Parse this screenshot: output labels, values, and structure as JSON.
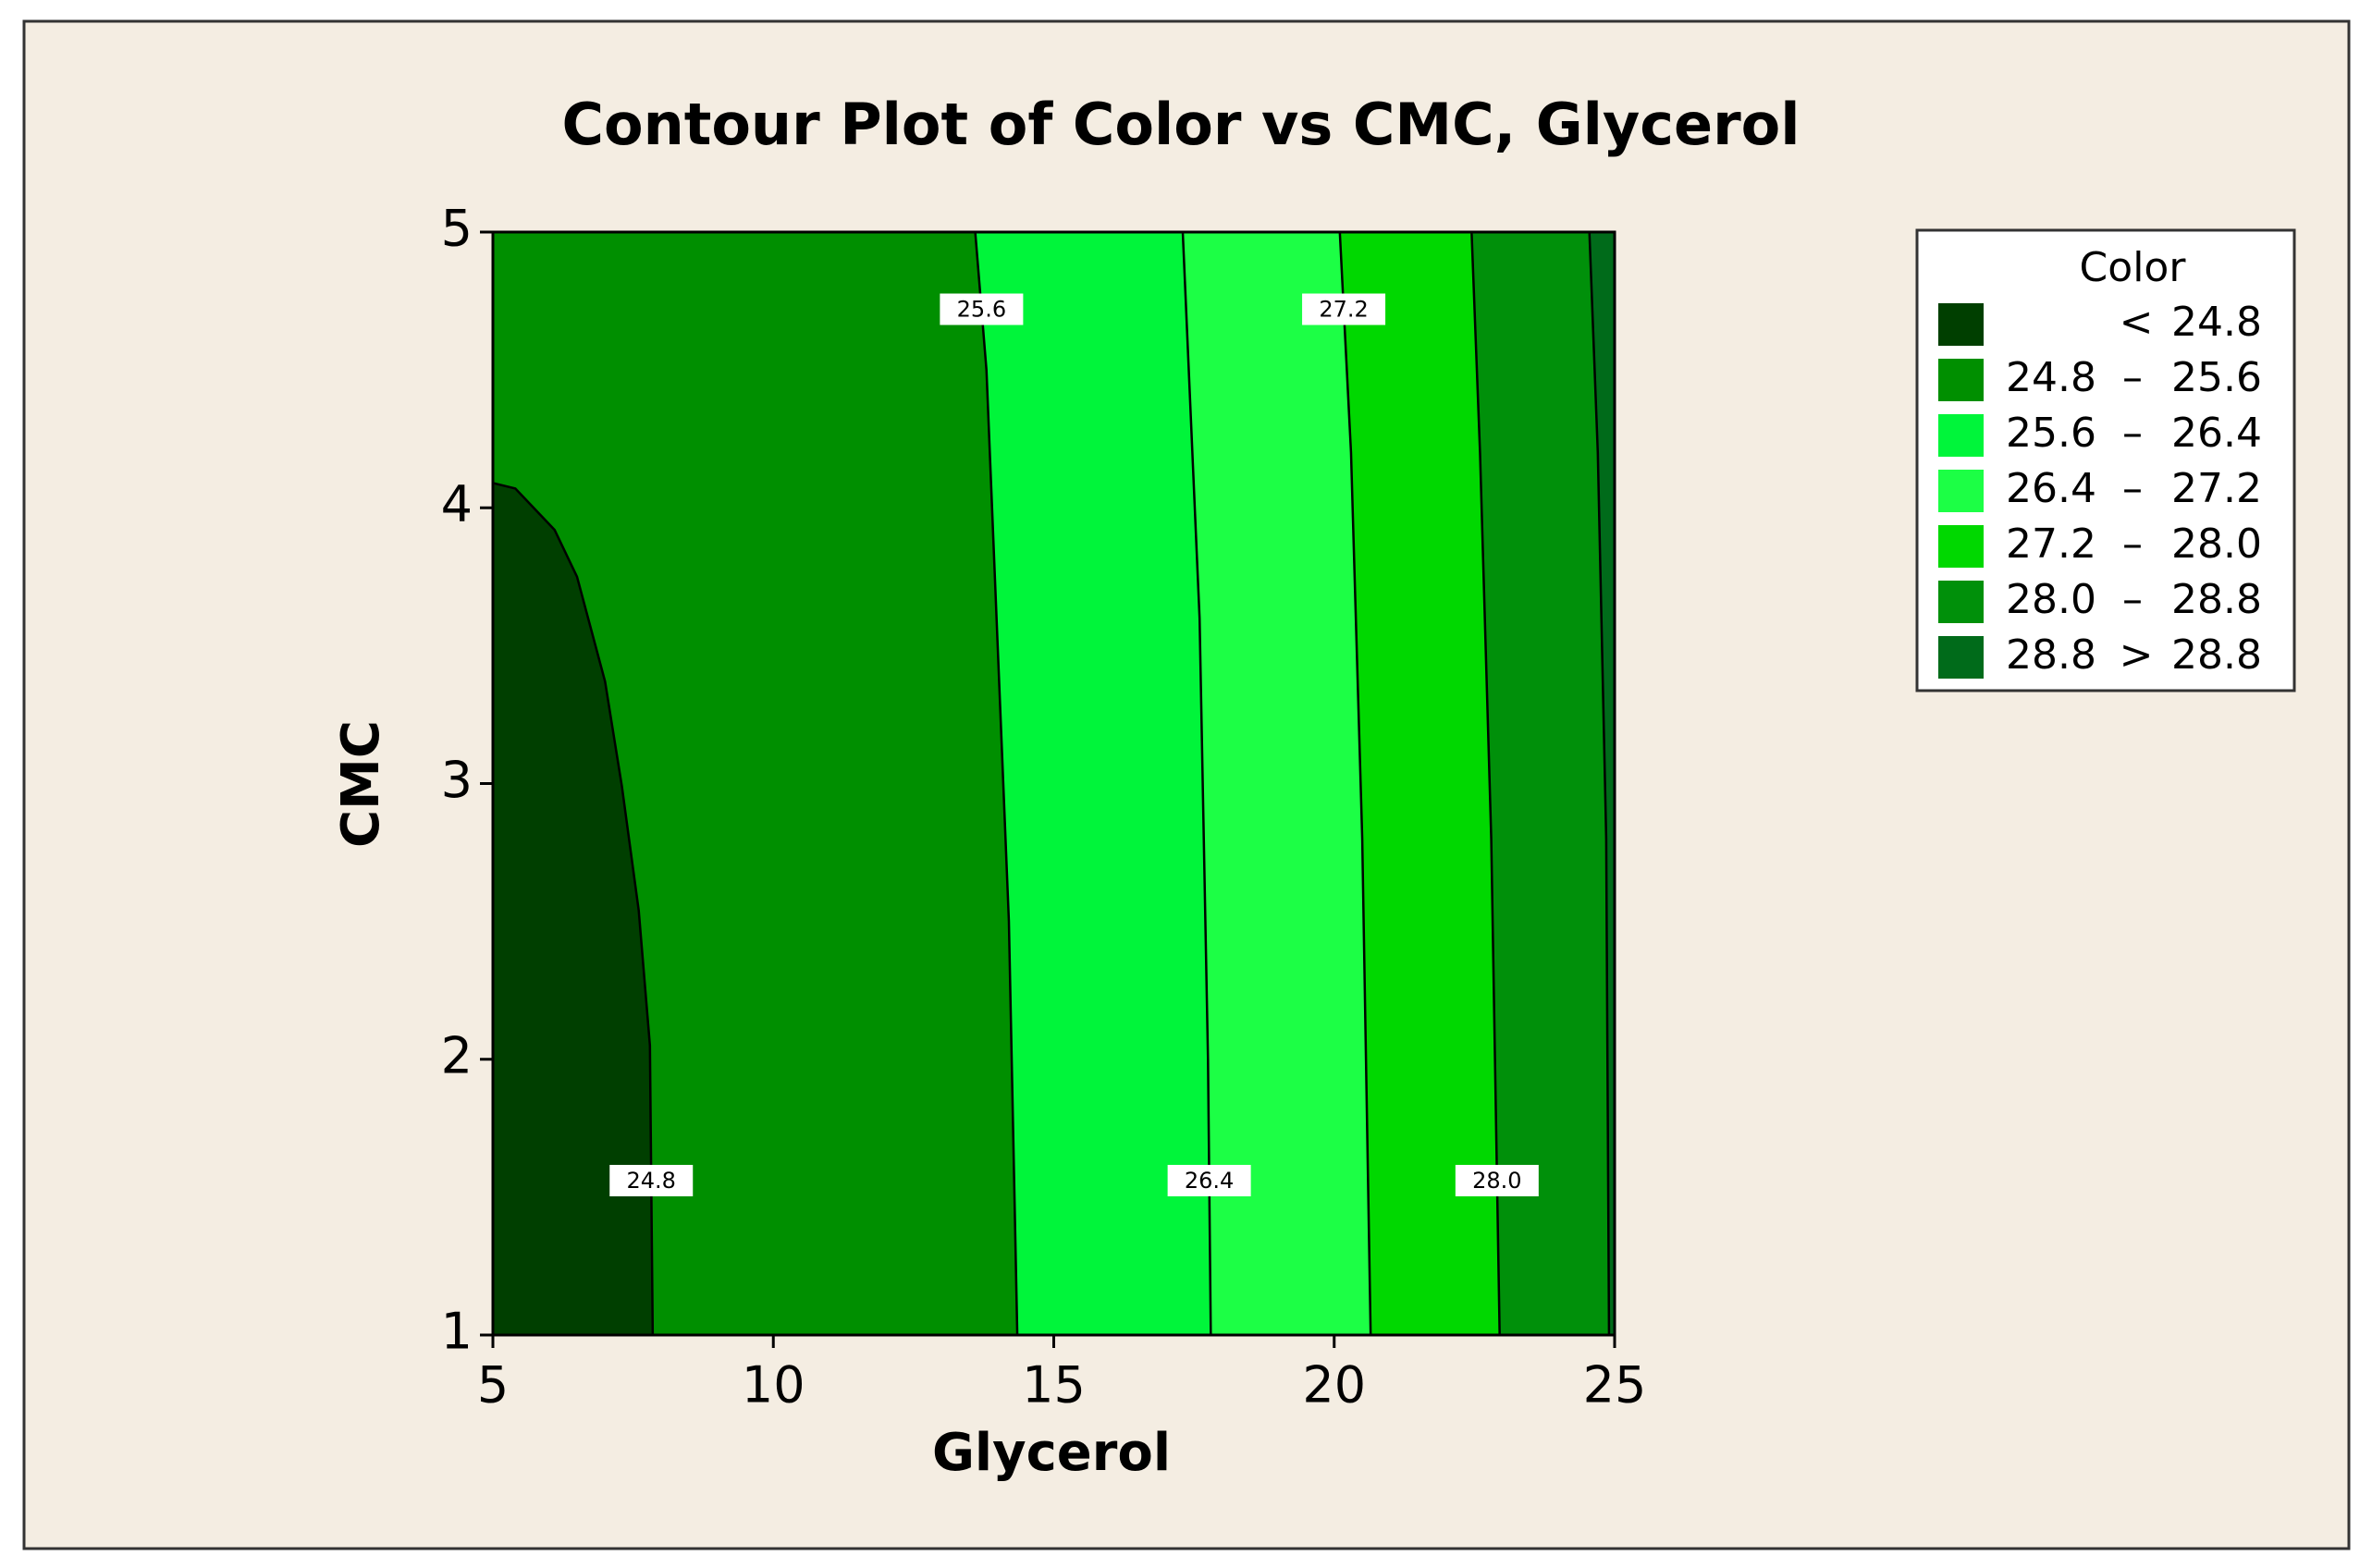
{
  "chart_data": {
    "type": "contour",
    "title": "Contour Plot of Color vs CMC, Glycerol",
    "xlabel": "Glycerol",
    "ylabel": "CMC",
    "xlim": [
      5,
      25
    ],
    "ylim": [
      1,
      5
    ],
    "xticks": [
      5,
      10,
      15,
      20,
      25
    ],
    "yticks": [
      1,
      2,
      3,
      4,
      5
    ],
    "legend_title": "Color",
    "legend": [
      {
        "symbol": "<",
        "high": 24.8,
        "color": "#003f00"
      },
      {
        "low": 24.8,
        "symbol": "–",
        "high": 25.6,
        "color": "#008f00"
      },
      {
        "low": 25.6,
        "symbol": "–",
        "high": 26.4,
        "color": "#00f53a"
      },
      {
        "low": 26.4,
        "symbol": "–",
        "high": 27.2,
        "color": "#1cff45"
      },
      {
        "low": 27.2,
        "symbol": "–",
        "high": {
          "value": 28,
          "label": "28.0"
        },
        "color": "#00d800"
      },
      {
        "low": {
          "value": 28,
          "label": "28.0"
        },
        "symbol": "–",
        "high": 28.8,
        "color": "#00900a"
      },
      {
        "symbol": ">",
        "low": 28.8,
        "color": "#006b1a"
      }
    ],
    "contours": [
      {
        "level": 24.8,
        "label": "24.8",
        "x": [
          5,
          5.4,
          6.1,
          6.5,
          7.0,
          7.3,
          7.6,
          7.8,
          7.85
        ],
        "y": [
          4.09,
          4.07,
          3.92,
          3.75,
          3.37,
          2.99,
          2.54,
          2.05,
          1
        ]
      },
      {
        "level": 25.6,
        "label": "25.6",
        "x": [
          13.6,
          13.8,
          14.0,
          14.2,
          14.35
        ],
        "y": [
          5,
          4.5,
          3.5,
          2.5,
          1
        ]
      },
      {
        "level": 26.4,
        "label": "26.4",
        "x": [
          17.3,
          17.6,
          17.75,
          17.8
        ],
        "y": [
          5,
          3.6,
          2,
          1
        ]
      },
      {
        "level": 27.2,
        "label": "27.2",
        "x": [
          20.1,
          20.3,
          20.5,
          20.65
        ],
        "y": [
          5,
          4.2,
          2.8,
          1
        ]
      },
      {
        "level": 28,
        "label": "28.0",
        "x": [
          22.45,
          22.6,
          22.8,
          22.95
        ],
        "y": [
          5,
          4.2,
          2.8,
          1
        ]
      },
      {
        "level": 28.8,
        "x": [
          24.55,
          24.7,
          24.85,
          24.9
        ],
        "y": [
          5,
          4.2,
          2.8,
          1
        ]
      }
    ]
  }
}
